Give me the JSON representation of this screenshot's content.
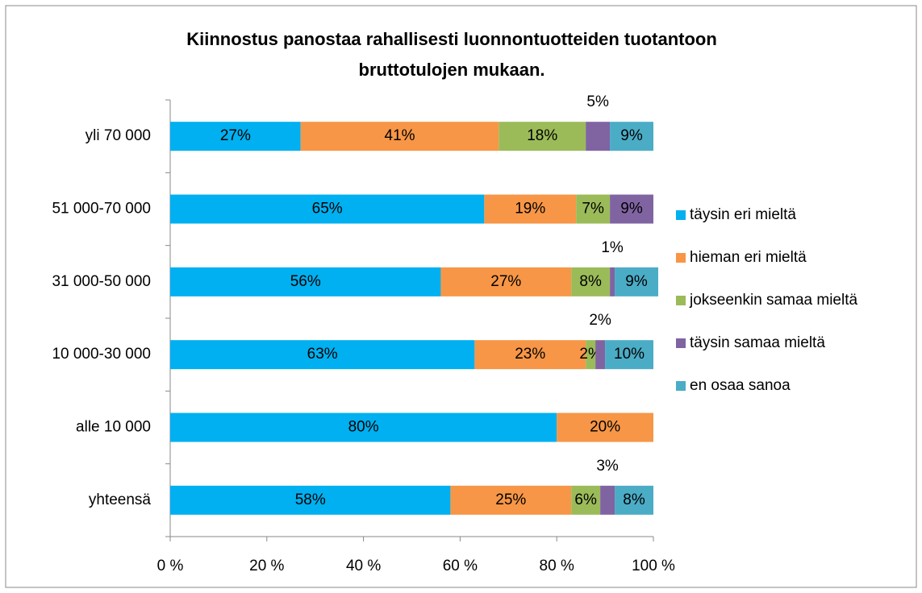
{
  "chart_data": {
    "type": "stacked_bar_horizontal",
    "title": [
      "Kiinnostus panostaa rahallisesti luonnontuotteiden tuotantoon",
      "bruttotulojen mukaan."
    ],
    "categories": [
      "yli 70 000",
      "51 000-70 000",
      "31 000-50 000",
      "10 000-30 000",
      "alle 10 000",
      "yhteensä"
    ],
    "series": [
      {
        "name": "täysin eri mieltä",
        "color": "#00b0f0",
        "values": [
          27,
          65,
          56,
          63,
          80,
          58
        ],
        "value_labels": [
          "27%",
          "65%",
          "56%",
          "63%",
          "80%",
          "58%"
        ]
      },
      {
        "name": "hieman eri mieltä",
        "color": "#f79646",
        "values": [
          41,
          19,
          27,
          23,
          20,
          25
        ],
        "value_labels": [
          "41%",
          "19%",
          "27%",
          "23%",
          "20%",
          "25%"
        ]
      },
      {
        "name": "jokseenkin samaa mieltä",
        "color": "#9bbb59",
        "values": [
          18,
          7,
          8,
          2,
          null,
          6
        ],
        "value_labels": [
          "18%",
          "7%",
          "8%",
          "2%",
          null,
          "6%"
        ]
      },
      {
        "name": "täysin samaa mieltä",
        "color": "#8064a2",
        "values": [
          5,
          9,
          1,
          2,
          null,
          3
        ],
        "value_labels": [
          "5%",
          "9%",
          "1%",
          "2%",
          null,
          "3%"
        ]
      },
      {
        "name": "en osaa sanoa",
        "color": "#4bacc6",
        "values": [
          9,
          null,
          9,
          10,
          null,
          8
        ],
        "value_labels": [
          "9%",
          null,
          "9%",
          "10%",
          null,
          "8%"
        ]
      }
    ],
    "xlim": [
      0,
      100
    ],
    "xticks": [
      {
        "value": 0,
        "label": "0 %"
      },
      {
        "value": 20,
        "label": "20 %"
      },
      {
        "value": 40,
        "label": "40 %"
      },
      {
        "value": 60,
        "label": "60 %"
      },
      {
        "value": 80,
        "label": "80 %"
      },
      {
        "value": 100,
        "label": "100 %"
      }
    ],
    "legend": "right"
  }
}
